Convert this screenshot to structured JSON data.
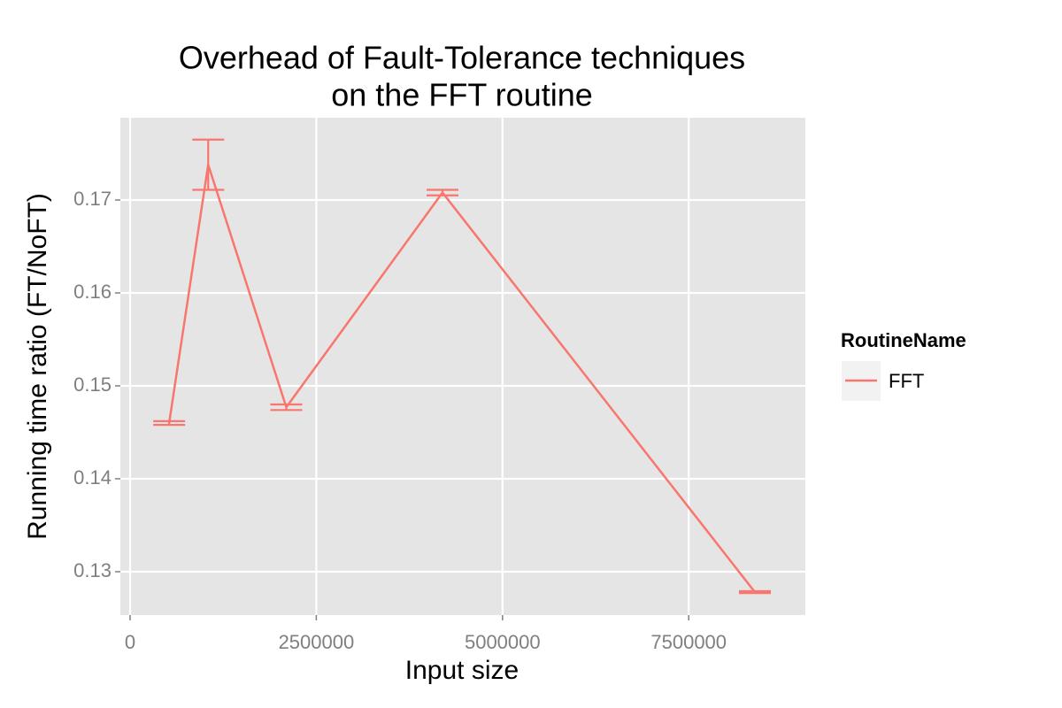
{
  "chart_data": {
    "type": "line",
    "title": [
      "Overhead of Fault-Tolerance techniques",
      "on the FFT routine"
    ],
    "x_label": "Input size",
    "y_label": "Running time ratio (FT/NoFT)",
    "x": [
      524288,
      1048576,
      2097152,
      4194304,
      8388608
    ],
    "series": [
      {
        "name": "FFT",
        "color": "#F8766D",
        "values": [
          0.146,
          0.1738,
          0.1477,
          0.1708,
          0.1278
        ],
        "errors": [
          0.0002,
          0.0027,
          0.0003,
          0.0003,
          0.0001
        ]
      }
    ],
    "xlim": [
      -130700,
      9066000
    ],
    "ylim": [
      0.12533,
      0.17886
    ],
    "xticks": [
      0,
      2500000,
      5000000,
      7500000
    ],
    "yticks": [
      0.13,
      0.14,
      0.15,
      0.16,
      0.17
    ],
    "grid": true,
    "legend_title": "RoutineName",
    "legend": "right"
  }
}
